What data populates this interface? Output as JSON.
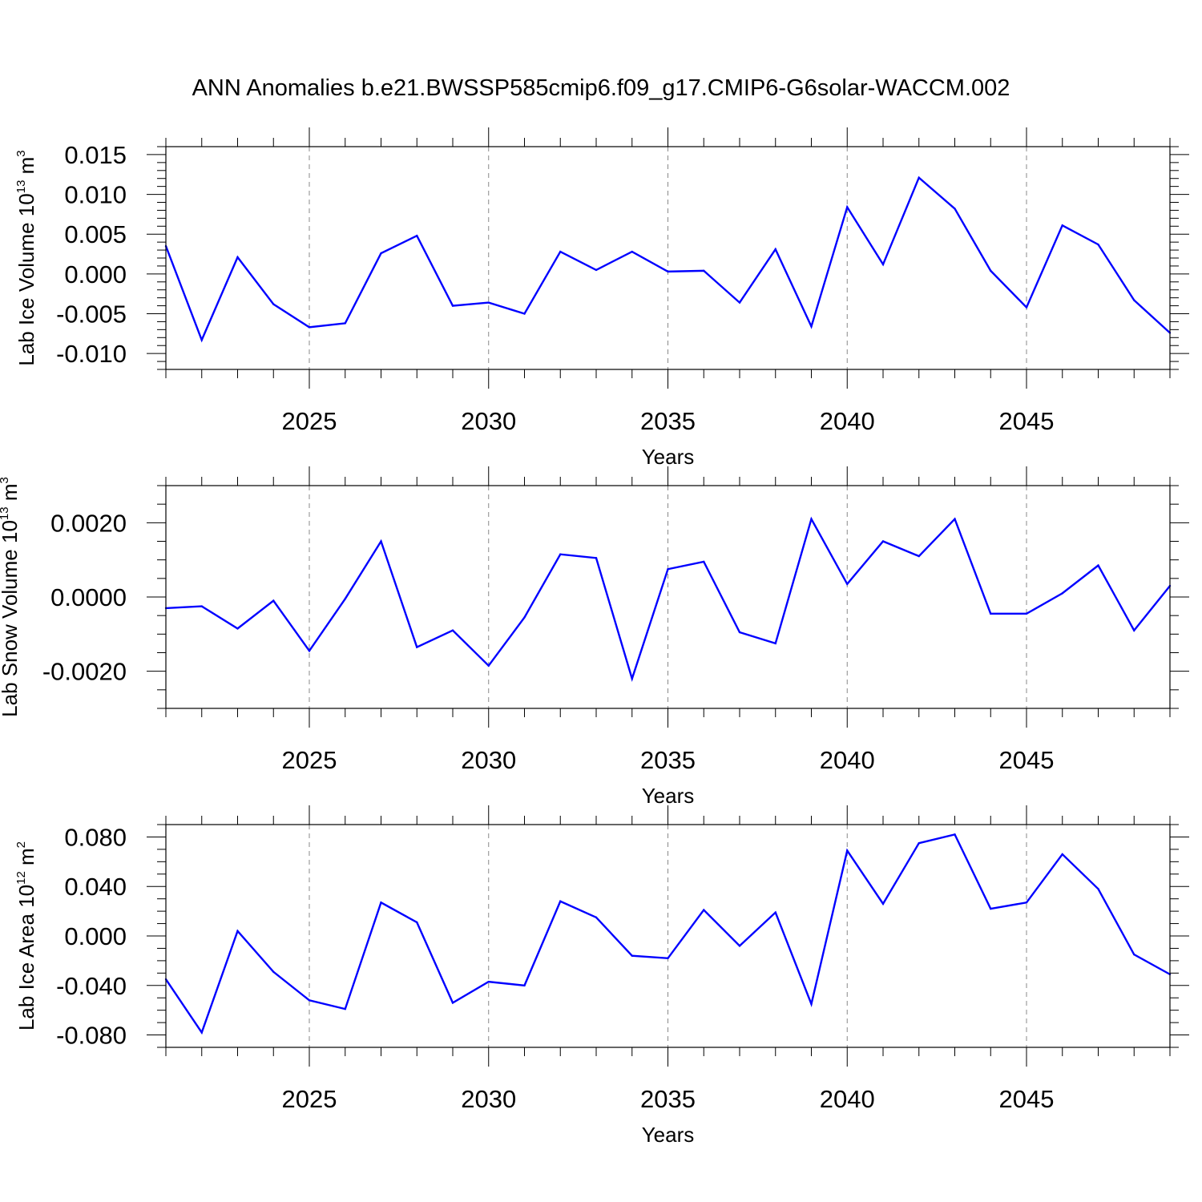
{
  "figure": {
    "title": "ANN Anomalies b.e21.BWSSP585cmip6.f09_g17.CMIP6-G6solar-WACCM.002"
  },
  "colors": {
    "series": "#0000ff",
    "axis": "#000000",
    "grid": "#888888"
  },
  "chart_data": [
    {
      "type": "line",
      "id": "ice-volume",
      "ylabel": "Lab Ice Volume 10",
      "ylabel_exponent": "13",
      "ylabel_unit": "m",
      "ylabel_unit_exponent": "3",
      "xlabel": "Years",
      "xlim": [
        2021,
        2049
      ],
      "ylim": [
        -0.012,
        0.016
      ],
      "x_ticks": [
        2025,
        2030,
        2035,
        2040,
        2045
      ],
      "x_tick_labels": [
        "2025",
        "2030",
        "2035",
        "2040",
        "2045"
      ],
      "y_ticks": [
        -0.01,
        -0.005,
        0.0,
        0.005,
        0.01,
        0.015
      ],
      "y_tick_labels": [
        "-0.010",
        "-0.005",
        "0.000",
        "0.005",
        "0.010",
        "0.015"
      ],
      "y_minor_step": 0.001,
      "vertical_gridlines": [
        2025,
        2030,
        2035,
        2040,
        2045
      ],
      "x": [
        2021,
        2022,
        2023,
        2024,
        2025,
        2026,
        2027,
        2028,
        2029,
        2030,
        2031,
        2032,
        2033,
        2034,
        2035,
        2036,
        2037,
        2038,
        2039,
        2040,
        2041,
        2042,
        2043,
        2044,
        2045,
        2046,
        2047,
        2048,
        2049
      ],
      "values": [
        0.0035,
        -0.0083,
        0.0021,
        -0.0038,
        -0.0067,
        -0.0062,
        0.0026,
        0.0048,
        -0.004,
        -0.0036,
        -0.005,
        0.0028,
        0.0005,
        0.0028,
        0.0003,
        0.0004,
        -0.0036,
        0.0031,
        -0.0066,
        0.0084,
        0.0012,
        0.0121,
        0.0082,
        0.0004,
        -0.0042,
        0.0061,
        0.0037,
        -0.0033,
        -0.0074
      ]
    },
    {
      "type": "line",
      "id": "snow-volume",
      "ylabel": "Lab Snow Volume 10",
      "ylabel_exponent": "13",
      "ylabel_unit": "m",
      "ylabel_unit_exponent": "3",
      "xlabel": "Years",
      "xlim": [
        2021,
        2049
      ],
      "ylim": [
        -0.003,
        0.003
      ],
      "x_ticks": [
        2025,
        2030,
        2035,
        2040,
        2045
      ],
      "x_tick_labels": [
        "2025",
        "2030",
        "2035",
        "2040",
        "2045"
      ],
      "y_ticks": [
        -0.002,
        0.0,
        0.002
      ],
      "y_tick_labels": [
        "-0.0020",
        "0.0000",
        "0.0020"
      ],
      "y_minor_step": 0.0005,
      "vertical_gridlines": [
        2025,
        2030,
        2035,
        2040,
        2045
      ],
      "x": [
        2021,
        2022,
        2023,
        2024,
        2025,
        2026,
        2027,
        2028,
        2029,
        2030,
        2031,
        2032,
        2033,
        2034,
        2035,
        2036,
        2037,
        2038,
        2039,
        2040,
        2041,
        2042,
        2043,
        2044,
        2045,
        2046,
        2047,
        2048,
        2049
      ],
      "values": [
        -0.0003,
        -0.00025,
        -0.00085,
        -0.0001,
        -0.00145,
        -5e-05,
        0.0015,
        -0.00135,
        -0.0009,
        -0.00185,
        -0.00055,
        0.00115,
        0.00105,
        -0.0022,
        0.00075,
        0.00095,
        -0.00095,
        -0.00125,
        0.0021,
        0.00035,
        0.0015,
        0.0011,
        0.0021,
        -0.00045,
        -0.00045,
        0.0001,
        0.00085,
        -0.0009,
        0.0003
      ]
    },
    {
      "type": "line",
      "id": "ice-area",
      "ylabel": "Lab Ice Area 10",
      "ylabel_exponent": "12",
      "ylabel_unit": "m",
      "ylabel_unit_exponent": "2",
      "xlabel": "Years",
      "xlim": [
        2021,
        2049
      ],
      "ylim": [
        -0.09,
        0.09
      ],
      "x_ticks": [
        2025,
        2030,
        2035,
        2040,
        2045
      ],
      "x_tick_labels": [
        "2025",
        "2030",
        "2035",
        "2040",
        "2045"
      ],
      "y_ticks": [
        -0.08,
        -0.04,
        0.0,
        0.04,
        0.08
      ],
      "y_tick_labels": [
        "-0.080",
        "-0.040",
        "0.000",
        "0.040",
        "0.080"
      ],
      "y_minor_step": 0.01,
      "vertical_gridlines": [
        2025,
        2030,
        2035,
        2040,
        2045
      ],
      "x": [
        2021,
        2022,
        2023,
        2024,
        2025,
        2026,
        2027,
        2028,
        2029,
        2030,
        2031,
        2032,
        2033,
        2034,
        2035,
        2036,
        2037,
        2038,
        2039,
        2040,
        2041,
        2042,
        2043,
        2044,
        2045,
        2046,
        2047,
        2048,
        2049
      ],
      "values": [
        -0.035,
        -0.078,
        0.004,
        -0.029,
        -0.052,
        -0.059,
        0.027,
        0.011,
        -0.054,
        -0.037,
        -0.04,
        0.028,
        0.015,
        -0.016,
        -0.018,
        0.021,
        -0.008,
        0.019,
        -0.055,
        0.069,
        0.026,
        0.075,
        0.082,
        0.022,
        0.027,
        0.066,
        0.038,
        -0.015,
        -0.031
      ]
    }
  ]
}
